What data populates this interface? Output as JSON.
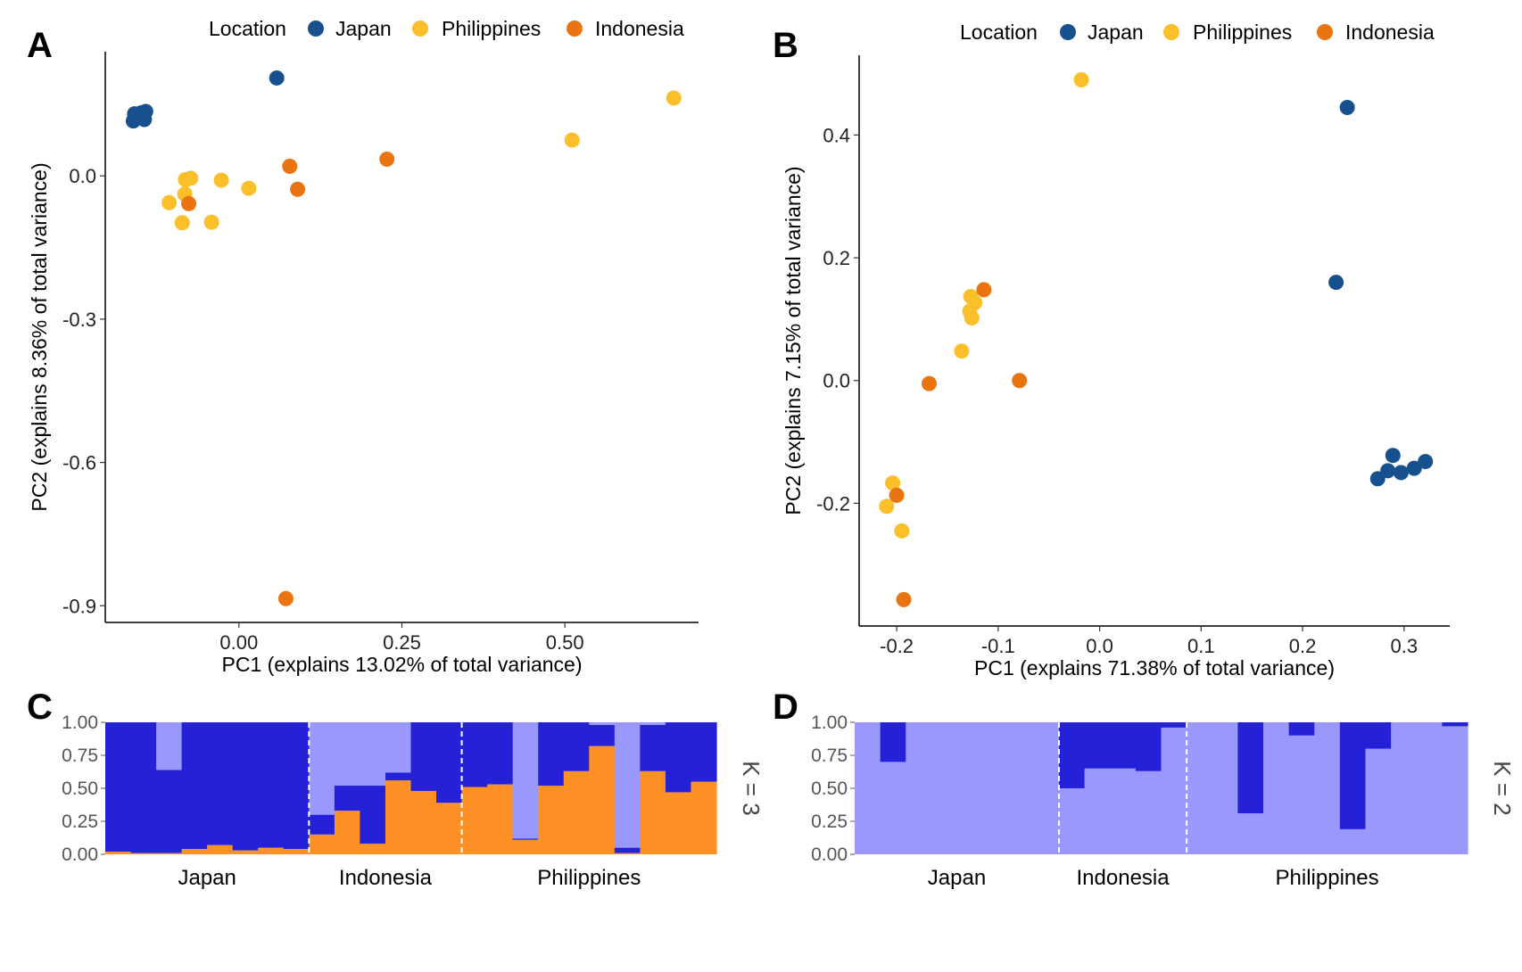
{
  "colors": {
    "japan": "#17508f",
    "philippines": "#fbbf2a",
    "indonesia": "#ea740f",
    "admix_light": "#9a98fc",
    "admix_dark": "#2421d9",
    "admix_orange": "#fd9126"
  },
  "legend": {
    "title": "Location",
    "entries": [
      "Japan",
      "Philippines",
      "Indonesia"
    ]
  },
  "panels": {
    "A": "A",
    "B": "B",
    "C": "C",
    "D": "D"
  },
  "chart_data": [
    {
      "id": "A",
      "type": "scatter",
      "xlabel": "PC1 (explains 13.02% of total variance)",
      "ylabel": "PC2 (explains 8.36% of total variance)",
      "xlim": [
        -0.205,
        0.705
      ],
      "ylim": [
        -0.935,
        0.26
      ],
      "xticks": [
        0,
        0.25,
        0.5
      ],
      "xtick_labels": [
        "0.00",
        "0.25",
        "0.50"
      ],
      "yticks": [
        0,
        -0.3,
        -0.6,
        -0.9
      ],
      "ytick_labels": [
        "0.0",
        "-0.3",
        "-0.6",
        "-0.9"
      ],
      "legend_position": "top",
      "series": [
        {
          "name": "Japan",
          "points": [
            [
              -0.16,
              0.13
            ],
            [
              -0.15,
              0.132
            ],
            [
              -0.143,
              0.135
            ],
            [
              -0.145,
              0.118
            ],
            [
              -0.162,
              0.115
            ],
            [
              0.058,
              0.205
            ]
          ]
        },
        {
          "name": "Philippines",
          "points": [
            [
              -0.082,
              -0.008
            ],
            [
              -0.074,
              -0.005
            ],
            [
              -0.083,
              -0.038
            ],
            [
              -0.107,
              -0.056
            ],
            [
              -0.087,
              -0.098
            ],
            [
              -0.042,
              -0.097
            ],
            [
              -0.027,
              -0.009
            ],
            [
              0.015,
              -0.026
            ],
            [
              0.511,
              0.075
            ],
            [
              0.667,
              0.163
            ]
          ]
        },
        {
          "name": "Indonesia",
          "points": [
            [
              -0.077,
              -0.058
            ],
            [
              0.078,
              0.02
            ],
            [
              0.09,
              -0.028
            ],
            [
              0.227,
              0.035
            ],
            [
              0.072,
              -0.885
            ]
          ]
        }
      ]
    },
    {
      "id": "B",
      "type": "scatter",
      "xlabel": "PC1 (explains 71.38% of total variance)",
      "ylabel": "PC2 (explains 7.15% of total variance)",
      "xlim": [
        -0.237,
        0.345
      ],
      "ylim": [
        -0.4,
        0.53
      ],
      "xticks": [
        -0.2,
        -0.1,
        0,
        0.1,
        0.2,
        0.3
      ],
      "xtick_labels": [
        "-0.2",
        "-0.1",
        "0.0",
        "0.1",
        "0.2",
        "0.3"
      ],
      "yticks": [
        0.4,
        0.2,
        0,
        -0.2
      ],
      "ytick_labels": [
        "0.4",
        "0.2",
        "0.0",
        "-0.2"
      ],
      "legend_position": "top",
      "series": [
        {
          "name": "Japan",
          "points": [
            [
              0.244,
              0.445
            ],
            [
              0.233,
              0.16
            ],
            [
              0.289,
              -0.122
            ],
            [
              0.274,
              -0.16
            ],
            [
              0.284,
              -0.147
            ],
            [
              0.297,
              -0.15
            ],
            [
              0.31,
              -0.143
            ],
            [
              0.321,
              -0.132
            ]
          ]
        },
        {
          "name": "Philippines",
          "points": [
            [
              -0.018,
              0.49
            ],
            [
              -0.127,
              0.137
            ],
            [
              -0.123,
              0.127
            ],
            [
              -0.128,
              0.113
            ],
            [
              -0.126,
              0.102
            ],
            [
              -0.136,
              0.048
            ],
            [
              -0.204,
              -0.167
            ],
            [
              -0.21,
              -0.205
            ],
            [
              -0.195,
              -0.245
            ]
          ]
        },
        {
          "name": "Indonesia",
          "points": [
            [
              -0.114,
              0.148
            ],
            [
              -0.168,
              -0.005
            ],
            [
              -0.079,
              0
            ],
            [
              -0.2,
              -0.187
            ],
            [
              -0.193,
              -0.357
            ]
          ]
        }
      ]
    },
    {
      "id": "C",
      "type": "bar",
      "stacked": true,
      "strip_label": "K = 3",
      "ylim": [
        0,
        1
      ],
      "yticks": [
        0,
        0.25,
        0.5,
        0.75,
        1
      ],
      "ytick_labels": [
        "0.00",
        "0.25",
        "0.50",
        "0.75",
        "1.00"
      ],
      "groups": [
        {
          "label": "Japan",
          "bars": [
            [
              0.02,
              0.98,
              0
            ],
            [
              0.01,
              0.99,
              0
            ],
            [
              0.01,
              0.63,
              0.36
            ],
            [
              0.04,
              0.96,
              0
            ],
            [
              0.07,
              0.93,
              0
            ],
            [
              0.03,
              0.97,
              0
            ],
            [
              0.05,
              0.95,
              0
            ],
            [
              0.04,
              0.96,
              0
            ]
          ]
        },
        {
          "label": "Indonesia",
          "bars": [
            [
              0.15,
              0.15,
              0.7
            ],
            [
              0.33,
              0.19,
              0.48
            ],
            [
              0.08,
              0.44,
              0.48
            ],
            [
              0.56,
              0.06,
              0.38
            ],
            [
              0.48,
              0.52,
              0
            ],
            [
              0.39,
              0.61,
              0
            ]
          ]
        },
        {
          "label": "Philippines",
          "bars": [
            [
              0.51,
              0.49,
              0
            ],
            [
              0.53,
              0.47,
              0
            ],
            [
              0.11,
              0.01,
              0.88
            ],
            [
              0.52,
              0.48,
              0
            ],
            [
              0.63,
              0.37,
              0
            ],
            [
              0.82,
              0.16,
              0.02
            ],
            [
              0.01,
              0.04,
              0.95
            ],
            [
              0.63,
              0.35,
              0.02
            ],
            [
              0.47,
              0.53,
              0
            ],
            [
              0.55,
              0.45,
              0
            ]
          ]
        }
      ]
    },
    {
      "id": "D",
      "type": "bar",
      "stacked": true,
      "strip_label": "K = 2",
      "ylim": [
        0,
        1
      ],
      "yticks": [
        0,
        0.25,
        0.5,
        0.75,
        1
      ],
      "ytick_labels": [
        "0.00",
        "0.25",
        "0.50",
        "0.75",
        "1.00"
      ],
      "groups": [
        {
          "label": "Japan",
          "bars": [
            [
              1,
              0
            ],
            [
              0.7,
              0.3
            ],
            [
              1,
              0
            ],
            [
              1,
              0
            ],
            [
              1,
              0
            ],
            [
              1,
              0
            ],
            [
              1,
              0
            ],
            [
              1,
              0
            ]
          ]
        },
        {
          "label": "Indonesia",
          "bars": [
            [
              0.5,
              0.5
            ],
            [
              0.65,
              0.35
            ],
            [
              0.65,
              0.35
            ],
            [
              0.63,
              0.37
            ],
            [
              0.96,
              0.04
            ]
          ]
        },
        {
          "label": "Philippines",
          "bars": [
            [
              1,
              0
            ],
            [
              1,
              0
            ],
            [
              0.31,
              0.69
            ],
            [
              1,
              0
            ],
            [
              0.9,
              0.1
            ],
            [
              1,
              0
            ],
            [
              0.19,
              0.81
            ],
            [
              0.8,
              0.2
            ],
            [
              1,
              0
            ],
            [
              1,
              0
            ],
            [
              0.97,
              0.03
            ]
          ]
        }
      ]
    }
  ]
}
